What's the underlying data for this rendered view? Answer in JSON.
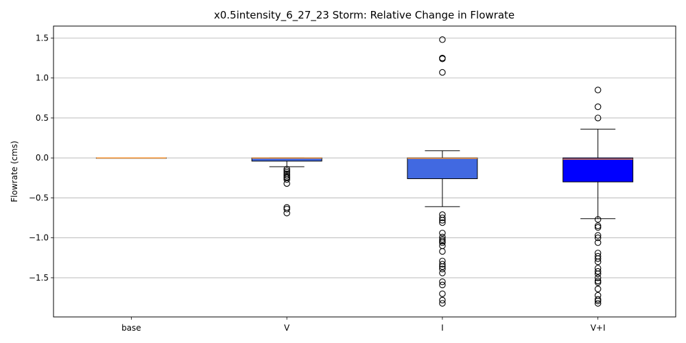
{
  "chart_data": {
    "type": "box",
    "title": "x0.5intensity_6_27_23 Storm: Relative Change in Flowrate",
    "xlabel": "",
    "ylabel": "Flowrate (cms)",
    "ylim": [
      -1.99,
      1.65
    ],
    "yticks": [
      1.5,
      1.0,
      0.5,
      0.0,
      -0.5,
      -1.0,
      -1.5
    ],
    "ytick_labels": [
      "1.5",
      "1.0",
      "0.5",
      "0.0",
      "−0.5",
      "−1.0",
      "−1.5"
    ],
    "grid": "y",
    "median_color": "#f28e2b",
    "categories": [
      "base",
      "V",
      "I",
      "V+I"
    ],
    "boxes": [
      {
        "category": "base",
        "color": "#ffffff",
        "q1": 0.0,
        "median": 0.0,
        "q3": 0.0,
        "whisker_low": 0.0,
        "whisker_high": 0.0,
        "fliers": []
      },
      {
        "category": "V",
        "color": "#4169e1",
        "q1": -0.04,
        "median": -0.003,
        "q3": 0.0,
        "whisker_low": -0.11,
        "whisker_high": 0.0,
        "fliers": [
          -0.14,
          -0.16,
          -0.18,
          -0.2,
          -0.22,
          -0.24,
          -0.25,
          -0.27,
          -0.32,
          -0.62,
          -0.64,
          -0.69
        ]
      },
      {
        "category": "I",
        "color": "#4169e1",
        "q1": -0.26,
        "median": -0.005,
        "q3": 0.0,
        "whisker_low": -0.61,
        "whisker_high": 0.09,
        "fliers": [
          1.48,
          1.25,
          1.24,
          1.07,
          -0.71,
          -0.75,
          -0.78,
          -0.81,
          -0.94,
          -0.99,
          -1.02,
          -1.04,
          -1.06,
          -1.1,
          -1.17,
          -1.29,
          -1.33,
          -1.36,
          -1.39,
          -1.44,
          -1.55,
          -1.59,
          -1.7,
          -1.78,
          -1.82
        ]
      },
      {
        "category": "V+I",
        "color": "#0000ff",
        "q1": -0.3,
        "median": -0.015,
        "q3": 0.0,
        "whisker_low": -0.76,
        "whisker_high": 0.36,
        "fliers": [
          0.85,
          0.64,
          0.5,
          -0.77,
          -0.85,
          -0.87,
          -0.97,
          -1.0,
          -1.06,
          -1.19,
          -1.23,
          -1.26,
          -1.3,
          -1.38,
          -1.42,
          -1.45,
          -1.5,
          -1.54,
          -1.56,
          -1.64,
          -1.72,
          -1.77,
          -1.79,
          -1.82
        ]
      }
    ]
  }
}
